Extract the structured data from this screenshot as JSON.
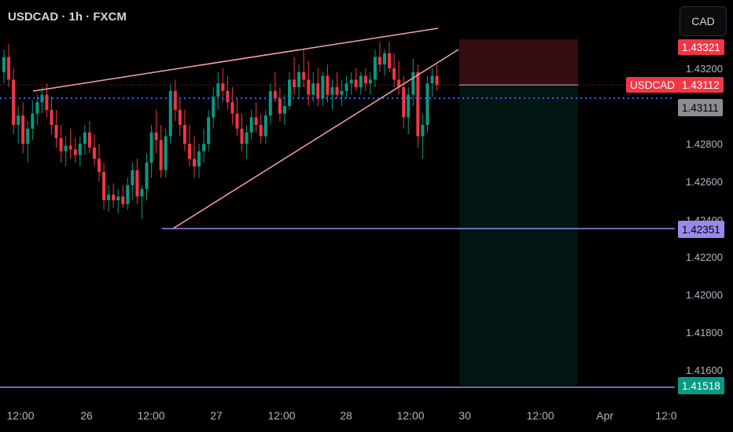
{
  "header": {
    "title": "USDCAD · 1h · FXCM",
    "currency_button": "CAD"
  },
  "price_axis": {
    "ticks": [
      "1.43200",
      "1.42800",
      "1.42600",
      "1.42200",
      "1.42000",
      "1.41800",
      "1.41600"
    ],
    "hidden_tick": "1.42400"
  },
  "tags": {
    "stop": "1.43321",
    "symbol": "USDCAD",
    "last": "1.43112",
    "prev": "1.43111",
    "support": "1.42351",
    "target": "1.41518"
  },
  "time_axis": [
    "12:00",
    "26",
    "12:00",
    "27",
    "12:00",
    "28",
    "12:00",
    "30",
    "12:00",
    "Apr",
    "12:0"
  ],
  "colors": {
    "up": "#089981",
    "down": "#f23645",
    "accent_line": "#f7a4a4",
    "level_line": "#9b88ec",
    "dotted_line": "#2962ff"
  },
  "chart_data": {
    "type": "candlestick",
    "symbol": "USDCAD",
    "timeframe": "1h",
    "source": "FXCM",
    "ylim": [
      1.4146,
      1.4341
    ],
    "ohlc": [
      [
        1.4318,
        1.433,
        1.4312,
        1.4326
      ],
      [
        1.4326,
        1.4333,
        1.431,
        1.4314
      ],
      [
        1.4314,
        1.432,
        1.4285,
        1.429
      ],
      [
        1.429,
        1.43,
        1.428,
        1.4295
      ],
      [
        1.4295,
        1.4302,
        1.4275,
        1.428
      ],
      [
        1.428,
        1.4292,
        1.427,
        1.4288
      ],
      [
        1.4288,
        1.4303,
        1.4282,
        1.4296
      ],
      [
        1.4296,
        1.4306,
        1.429,
        1.4302
      ],
      [
        1.4302,
        1.431,
        1.4296,
        1.4306
      ],
      [
        1.4306,
        1.4312,
        1.4294,
        1.4298
      ],
      [
        1.4298,
        1.4305,
        1.4285,
        1.429
      ],
      [
        1.429,
        1.4298,
        1.4278,
        1.4283
      ],
      [
        1.4283,
        1.429,
        1.427,
        1.4276
      ],
      [
        1.4276,
        1.4284,
        1.4268,
        1.4279
      ],
      [
        1.4279,
        1.4288,
        1.4272,
        1.4277
      ],
      [
        1.4277,
        1.4283,
        1.427,
        1.4274
      ],
      [
        1.4274,
        1.4284,
        1.4268,
        1.428
      ],
      [
        1.428,
        1.429,
        1.4274,
        1.4286
      ],
      [
        1.4286,
        1.4292,
        1.4275,
        1.4278
      ],
      [
        1.4278,
        1.4285,
        1.4268,
        1.4272
      ],
      [
        1.4272,
        1.428,
        1.426,
        1.4265
      ],
      [
        1.4265,
        1.427,
        1.4245,
        1.425
      ],
      [
        1.425,
        1.4258,
        1.4244,
        1.4253
      ],
      [
        1.4253,
        1.4259,
        1.4246,
        1.425
      ],
      [
        1.425,
        1.4256,
        1.4243,
        1.4252
      ],
      [
        1.4252,
        1.4258,
        1.4246,
        1.4248
      ],
      [
        1.4248,
        1.4262,
        1.4245,
        1.4258
      ],
      [
        1.4258,
        1.427,
        1.425,
        1.4266
      ],
      [
        1.4266,
        1.4272,
        1.4248,
        1.4252
      ],
      [
        1.4252,
        1.4258,
        1.424,
        1.4256
      ],
      [
        1.4256,
        1.4275,
        1.425,
        1.427
      ],
      [
        1.427,
        1.429,
        1.4262,
        1.4286
      ],
      [
        1.4286,
        1.4298,
        1.4275,
        1.4282
      ],
      [
        1.4282,
        1.429,
        1.4262,
        1.4266
      ],
      [
        1.4266,
        1.4288,
        1.4262,
        1.4284
      ],
      [
        1.4284,
        1.4312,
        1.428,
        1.4308
      ],
      [
        1.4308,
        1.4314,
        1.4292,
        1.4298
      ],
      [
        1.4298,
        1.4304,
        1.4284,
        1.429
      ],
      [
        1.429,
        1.4298,
        1.4276,
        1.428
      ],
      [
        1.428,
        1.429,
        1.4268,
        1.4272
      ],
      [
        1.4272,
        1.4284,
        1.4262,
        1.4268
      ],
      [
        1.4268,
        1.428,
        1.4262,
        1.4276
      ],
      [
        1.4276,
        1.4288,
        1.427,
        1.428
      ],
      [
        1.428,
        1.4298,
        1.4276,
        1.4294
      ],
      [
        1.4294,
        1.431,
        1.4288,
        1.4305
      ],
      [
        1.4305,
        1.4318,
        1.4298,
        1.4312
      ],
      [
        1.4312,
        1.432,
        1.4302,
        1.4308
      ],
      [
        1.4308,
        1.4316,
        1.4298,
        1.4302
      ],
      [
        1.4302,
        1.431,
        1.429,
        1.4296
      ],
      [
        1.4296,
        1.4304,
        1.4284,
        1.4288
      ],
      [
        1.4288,
        1.4296,
        1.4276,
        1.428
      ],
      [
        1.428,
        1.429,
        1.4272,
        1.4286
      ],
      [
        1.4286,
        1.4298,
        1.4282,
        1.4294
      ],
      [
        1.4294,
        1.4302,
        1.4286,
        1.429
      ],
      [
        1.429,
        1.4296,
        1.428,
        1.4284
      ],
      [
        1.4284,
        1.4298,
        1.428,
        1.4295
      ],
      [
        1.4295,
        1.4312,
        1.429,
        1.4308
      ],
      [
        1.4308,
        1.4318,
        1.4302,
        1.4304
      ],
      [
        1.4304,
        1.431,
        1.4292,
        1.4296
      ],
      [
        1.4296,
        1.4306,
        1.429,
        1.43
      ],
      [
        1.43,
        1.4318,
        1.4298,
        1.4314
      ],
      [
        1.4314,
        1.4326,
        1.4306,
        1.431
      ],
      [
        1.431,
        1.4322,
        1.4304,
        1.4318
      ],
      [
        1.4318,
        1.433,
        1.431,
        1.4314
      ],
      [
        1.4314,
        1.4324,
        1.43,
        1.4306
      ],
      [
        1.4306,
        1.4318,
        1.4302,
        1.4312
      ],
      [
        1.4312,
        1.432,
        1.43,
        1.4304
      ],
      [
        1.4304,
        1.4318,
        1.43,
        1.4316
      ],
      [
        1.4316,
        1.4322,
        1.4302,
        1.4306
      ],
      [
        1.4306,
        1.4314,
        1.4298,
        1.431
      ],
      [
        1.431,
        1.4318,
        1.4304,
        1.4306
      ],
      [
        1.4306,
        1.4314,
        1.43,
        1.4308
      ],
      [
        1.4308,
        1.4316,
        1.4304,
        1.4312
      ],
      [
        1.4312,
        1.4318,
        1.4306,
        1.4314
      ],
      [
        1.4314,
        1.432,
        1.4308,
        1.431
      ],
      [
        1.431,
        1.4318,
        1.4306,
        1.4316
      ],
      [
        1.4316,
        1.432,
        1.4308,
        1.4312
      ],
      [
        1.4312,
        1.4318,
        1.4306,
        1.4314
      ],
      [
        1.4314,
        1.433,
        1.431,
        1.4326
      ],
      [
        1.4326,
        1.4334,
        1.4318,
        1.4322
      ],
      [
        1.4322,
        1.433,
        1.4316,
        1.4328
      ],
      [
        1.4328,
        1.4334,
        1.4318,
        1.432
      ],
      [
        1.432,
        1.4328,
        1.431,
        1.4314
      ],
      [
        1.4314,
        1.4324,
        1.4306,
        1.431
      ],
      [
        1.431,
        1.4316,
        1.4288,
        1.4294
      ],
      [
        1.4294,
        1.431,
        1.4285,
        1.4306
      ],
      [
        1.4306,
        1.4325,
        1.43,
        1.4318
      ],
      [
        1.4318,
        1.4322,
        1.4278,
        1.4284
      ],
      [
        1.4284,
        1.4296,
        1.4272,
        1.429
      ],
      [
        1.429,
        1.4316,
        1.4286,
        1.4312
      ],
      [
        1.4312,
        1.432,
        1.4305,
        1.4316
      ],
      [
        1.4316,
        1.4322,
        1.4308,
        1.4311
      ]
    ],
    "trendlines": [
      {
        "name": "upper",
        "from": [
          1.4314
        ],
        "to": [
          1.4337
        ]
      },
      {
        "name": "lower",
        "from": [
          1.4236
        ],
        "to": [
          1.4327
        ]
      }
    ],
    "levels": {
      "support": 1.42351,
      "target": 1.41518,
      "entry": 1.43112,
      "stop": 1.43321
    },
    "position": {
      "type": "short",
      "entry": 1.43112,
      "stop": 1.43321,
      "target": 1.41518
    }
  }
}
